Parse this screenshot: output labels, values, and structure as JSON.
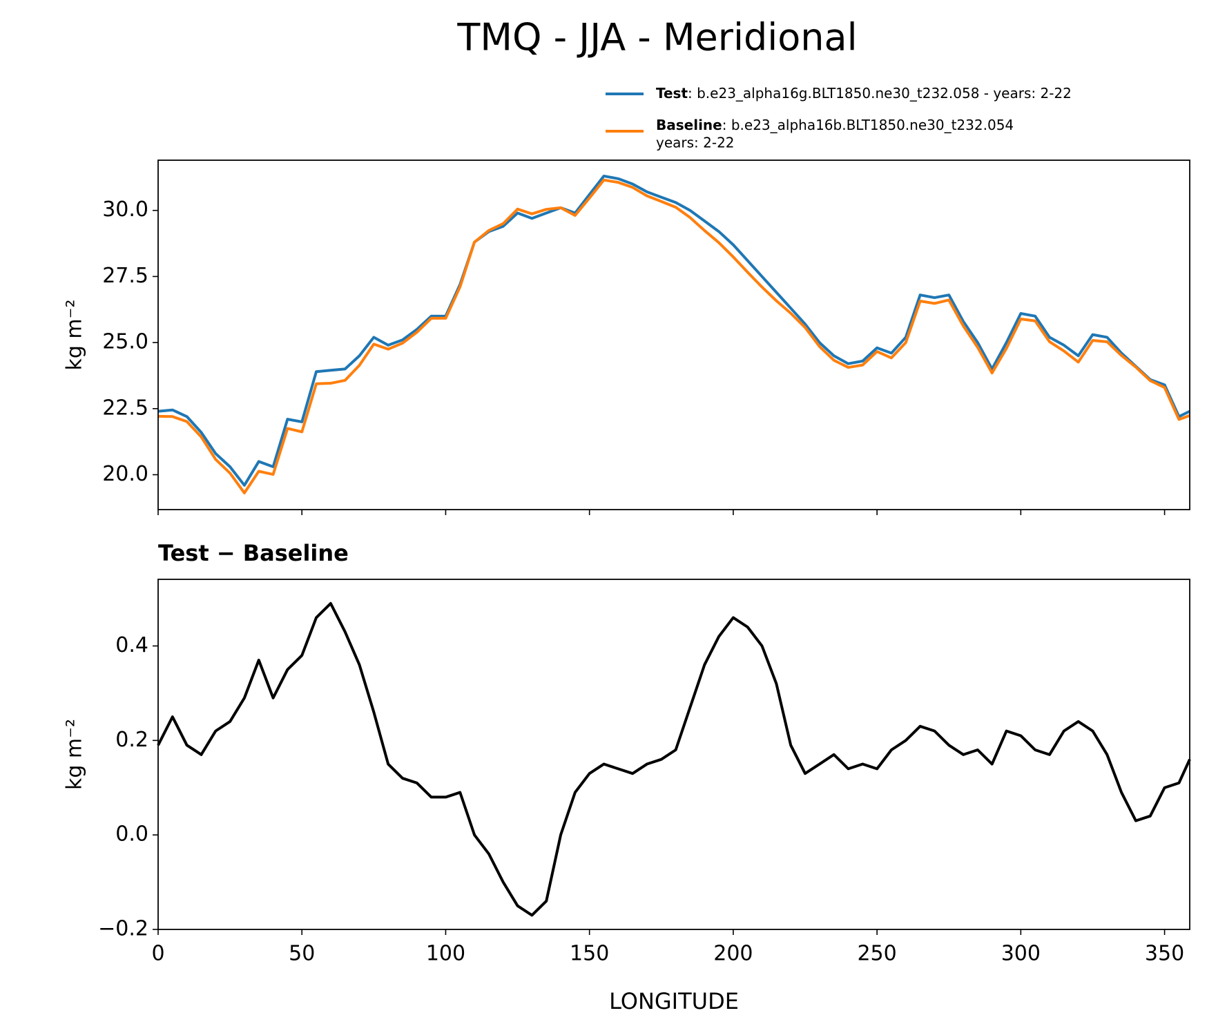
{
  "title": "TMQ - JJA - Meridional",
  "chart_data": [
    {
      "type": "line",
      "ylabel": "kg m⁻²",
      "legend_loc": "upper right",
      "xlim": [
        0,
        358.75
      ],
      "xticks": [
        0,
        50,
        100,
        150,
        200,
        250,
        300,
        350
      ],
      "xtick_labels_visible": false,
      "ylim": [
        18.68,
        31.9
      ],
      "yticks": [
        {
          "value": 20,
          "label": "20.0"
        },
        22.5,
        {
          "value": 25,
          "label": "25.0"
        },
        27.5,
        {
          "value": 30,
          "label": "30.0"
        }
      ],
      "x": [
        0,
        5,
        10,
        15,
        20,
        25,
        30,
        35,
        40,
        45,
        50,
        55,
        60,
        65,
        70,
        75,
        80,
        85,
        90,
        95,
        100,
        105,
        110,
        115,
        120,
        125,
        130,
        135,
        140,
        145,
        150,
        155,
        160,
        165,
        170,
        175,
        180,
        185,
        190,
        195,
        200,
        205,
        210,
        215,
        220,
        225,
        230,
        235,
        240,
        245,
        250,
        255,
        260,
        265,
        270,
        275,
        280,
        285,
        290,
        295,
        300,
        305,
        310,
        315,
        320,
        325,
        330,
        335,
        340,
        345,
        350,
        355,
        358.75
      ],
      "series": [
        {
          "name": "Test",
          "legend_text": [
            ": b.e23_alpha16g.BLT1850.ne30_t232.058 - years: 2-22"
          ],
          "color": "#1f77b4",
          "values": [
            22.4,
            22.45,
            22.2,
            21.6,
            20.8,
            20.3,
            19.6,
            20.5,
            20.3,
            22.1,
            22.0,
            23.9,
            23.95,
            24.0,
            24.5,
            25.2,
            24.9,
            25.1,
            25.5,
            26.0,
            26.0,
            27.2,
            28.8,
            29.2,
            29.4,
            29.9,
            29.7,
            29.9,
            30.1,
            29.9,
            30.6,
            31.3,
            31.2,
            31.0,
            30.7,
            30.5,
            30.3,
            30.0,
            29.6,
            29.2,
            28.7,
            28.1,
            27.5,
            26.9,
            26.3,
            25.7,
            25.0,
            24.5,
            24.2,
            24.3,
            24.8,
            24.6,
            25.2,
            26.8,
            26.7,
            26.8,
            25.8,
            25.0,
            24.0,
            25.0,
            26.1,
            26.0,
            25.2,
            24.9,
            24.5,
            25.3,
            25.2,
            24.6,
            24.1,
            23.6,
            23.4,
            22.2,
            22.4
          ]
        },
        {
          "name": "Baseline",
          "legend_text": [
            ": b.e23_alpha16b.BLT1850.ne30_t232.054",
            "years: 2-22"
          ],
          "color": "#ff7f0e",
          "values": [
            22.21,
            22.2,
            22.01,
            21.43,
            20.58,
            20.06,
            19.31,
            20.13,
            20.01,
            21.75,
            21.62,
            23.44,
            23.46,
            23.57,
            24.14,
            24.94,
            24.75,
            24.98,
            25.39,
            25.92,
            25.92,
            27.11,
            28.8,
            29.24,
            29.5,
            30.05,
            29.87,
            30.04,
            30.1,
            29.81,
            30.47,
            31.15,
            31.06,
            30.87,
            30.55,
            30.34,
            30.12,
            29.73,
            29.24,
            28.78,
            28.24,
            27.66,
            27.1,
            26.58,
            26.11,
            25.57,
            24.85,
            24.33,
            24.06,
            24.15,
            24.66,
            24.42,
            25.0,
            26.57,
            26.48,
            26.61,
            25.63,
            24.82,
            23.85,
            24.78,
            25.89,
            25.82,
            25.03,
            24.68,
            24.26,
            25.08,
            25.03,
            24.51,
            24.07,
            23.56,
            23.3,
            22.09,
            22.24
          ]
        }
      ]
    },
    {
      "type": "line",
      "title": "Test − Baseline",
      "ylabel": "kg m⁻²",
      "xlabel": "LONGITUDE",
      "xlim": [
        0,
        358.75
      ],
      "xticks": [
        0,
        50,
        100,
        150,
        200,
        250,
        300,
        350
      ],
      "xtick_labels_visible": true,
      "ylim": [
        -0.2,
        0.541
      ],
      "yticks": [
        {
          "value": -0.2,
          "label": "−0.2"
        },
        {
          "value": 0,
          "label": "0.0"
        },
        0.2,
        0.4
      ],
      "x": [
        0,
        5,
        10,
        15,
        20,
        25,
        30,
        35,
        40,
        45,
        50,
        55,
        60,
        65,
        70,
        75,
        80,
        85,
        90,
        95,
        100,
        105,
        110,
        115,
        120,
        125,
        130,
        135,
        140,
        145,
        150,
        155,
        160,
        165,
        170,
        175,
        180,
        185,
        190,
        195,
        200,
        205,
        210,
        215,
        220,
        225,
        230,
        235,
        240,
        245,
        250,
        255,
        260,
        265,
        270,
        275,
        280,
        285,
        290,
        295,
        300,
        305,
        310,
        315,
        320,
        325,
        330,
        335,
        340,
        345,
        350,
        355,
        358.75
      ],
      "series": [
        {
          "color": "#000000",
          "values": [
            0.19,
            0.25,
            0.19,
            0.17,
            0.22,
            0.24,
            0.29,
            0.37,
            0.29,
            0.35,
            0.38,
            0.46,
            0.49,
            0.43,
            0.36,
            0.26,
            0.15,
            0.12,
            0.11,
            0.08,
            0.08,
            0.09,
            0.0,
            -0.04,
            -0.1,
            -0.15,
            -0.17,
            -0.14,
            0.0,
            0.09,
            0.13,
            0.15,
            0.14,
            0.13,
            0.15,
            0.16,
            0.18,
            0.27,
            0.36,
            0.42,
            0.46,
            0.44,
            0.4,
            0.32,
            0.19,
            0.13,
            0.15,
            0.17,
            0.14,
            0.15,
            0.14,
            0.18,
            0.2,
            0.23,
            0.22,
            0.19,
            0.17,
            0.18,
            0.15,
            0.22,
            0.21,
            0.18,
            0.17,
            0.22,
            0.24,
            0.22,
            0.17,
            0.09,
            0.03,
            0.04,
            0.1,
            0.11,
            0.16
          ]
        }
      ]
    }
  ]
}
